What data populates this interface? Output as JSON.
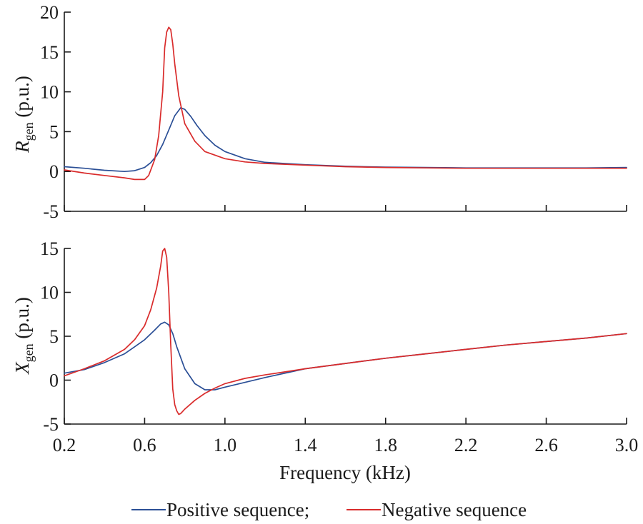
{
  "chart_data": [
    {
      "type": "line",
      "ylabel_main": "R",
      "ylabel_sub": "gen",
      "ylabel_unit": " (p.u.)",
      "xlim": [
        0.2,
        3.0
      ],
      "ylim": [
        -5,
        20
      ],
      "yticks": [
        -5,
        0,
        5,
        10,
        15,
        20
      ],
      "ytick_labels": [
        "-5",
        "0",
        "5",
        "10",
        "15",
        "20"
      ],
      "xticks": [
        0.2,
        0.6,
        1.0,
        1.4,
        1.8,
        2.2,
        2.6,
        3.0
      ],
      "series": [
        {
          "name": "Positive sequence;",
          "color": "#2b4f96",
          "x": [
            0.2,
            0.3,
            0.4,
            0.5,
            0.55,
            0.6,
            0.63,
            0.66,
            0.69,
            0.72,
            0.75,
            0.78,
            0.8,
            0.83,
            0.86,
            0.9,
            0.95,
            1.0,
            1.1,
            1.2,
            1.4,
            1.6,
            1.8,
            2.0,
            2.2,
            2.4,
            2.6,
            2.8,
            3.0
          ],
          "y": [
            0.6,
            0.4,
            0.15,
            0.0,
            0.1,
            0.5,
            1.1,
            2.0,
            3.4,
            5.2,
            7.0,
            8.0,
            7.8,
            6.9,
            5.8,
            4.5,
            3.3,
            2.5,
            1.6,
            1.15,
            0.85,
            0.65,
            0.55,
            0.5,
            0.45,
            0.45,
            0.45,
            0.45,
            0.5
          ]
        },
        {
          "name": "Negative sequence",
          "color": "#d92b2b",
          "x": [
            0.2,
            0.3,
            0.4,
            0.5,
            0.55,
            0.6,
            0.62,
            0.65,
            0.67,
            0.69,
            0.7,
            0.71,
            0.72,
            0.73,
            0.74,
            0.75,
            0.77,
            0.8,
            0.85,
            0.9,
            1.0,
            1.1,
            1.2,
            1.4,
            1.6,
            1.8,
            2.0,
            2.2,
            2.4,
            2.6,
            2.8,
            3.0
          ],
          "y": [
            0.2,
            -0.2,
            -0.5,
            -0.8,
            -1.0,
            -1.0,
            -0.5,
            1.5,
            4.5,
            10.0,
            15.5,
            17.5,
            18.1,
            17.8,
            16.0,
            13.5,
            9.5,
            6.0,
            3.8,
            2.5,
            1.6,
            1.2,
            1.0,
            0.8,
            0.6,
            0.5,
            0.45,
            0.4,
            0.4,
            0.4,
            0.4,
            0.4
          ]
        }
      ]
    },
    {
      "type": "line",
      "ylabel_main": "X",
      "ylabel_sub": "gen",
      "ylabel_unit": " (p.u.)",
      "xlabel": "Frequency (kHz)",
      "xlim": [
        0.2,
        3.0
      ],
      "ylim": [
        -5,
        15
      ],
      "yticks": [
        -5,
        0,
        5,
        10,
        15
      ],
      "ytick_labels": [
        "-5",
        "0",
        "5",
        "10",
        "15"
      ],
      "xticks": [
        0.2,
        0.6,
        1.0,
        1.4,
        1.8,
        2.2,
        2.6,
        3.0
      ],
      "xtick_labels": [
        "0.2",
        "0.6",
        "1.0",
        "1.4",
        "1.8",
        "2.2",
        "2.6",
        "3.0"
      ],
      "series": [
        {
          "name": "Positive sequence;",
          "color": "#2b4f96",
          "x": [
            0.2,
            0.3,
            0.4,
            0.5,
            0.55,
            0.6,
            0.65,
            0.68,
            0.7,
            0.72,
            0.74,
            0.76,
            0.8,
            0.85,
            0.9,
            0.95,
            1.0,
            1.2,
            1.4,
            1.6,
            1.8,
            2.0,
            2.2,
            2.4,
            2.6,
            2.8,
            3.0
          ],
          "y": [
            0.8,
            1.2,
            2.0,
            3.0,
            3.8,
            4.6,
            5.7,
            6.4,
            6.6,
            6.3,
            5.3,
            3.8,
            1.3,
            -0.4,
            -1.1,
            -1.1,
            -0.8,
            0.3,
            1.3,
            1.9,
            2.5,
            3.0,
            3.5,
            4.0,
            4.4,
            4.8,
            5.3
          ]
        },
        {
          "name": "Negative sequence",
          "color": "#d92b2b",
          "x": [
            0.2,
            0.3,
            0.4,
            0.5,
            0.55,
            0.6,
            0.63,
            0.66,
            0.68,
            0.69,
            0.7,
            0.71,
            0.72,
            0.73,
            0.74,
            0.75,
            0.76,
            0.77,
            0.78,
            0.8,
            0.85,
            0.9,
            0.95,
            1.0,
            1.1,
            1.2,
            1.4,
            1.6,
            1.8,
            2.0,
            2.2,
            2.4,
            2.6,
            2.8,
            3.0
          ],
          "y": [
            0.5,
            1.3,
            2.2,
            3.5,
            4.6,
            6.2,
            8.0,
            10.5,
            13.0,
            14.7,
            15.0,
            14.0,
            10.0,
            4.0,
            -1.0,
            -2.8,
            -3.5,
            -3.9,
            -3.8,
            -3.3,
            -2.3,
            -1.5,
            -0.9,
            -0.4,
            0.2,
            0.6,
            1.3,
            1.9,
            2.5,
            3.0,
            3.5,
            4.0,
            4.4,
            4.8,
            5.3
          ]
        }
      ]
    }
  ],
  "legend": {
    "positive_label": "Positive sequence;",
    "negative_label": "Negative sequence"
  }
}
